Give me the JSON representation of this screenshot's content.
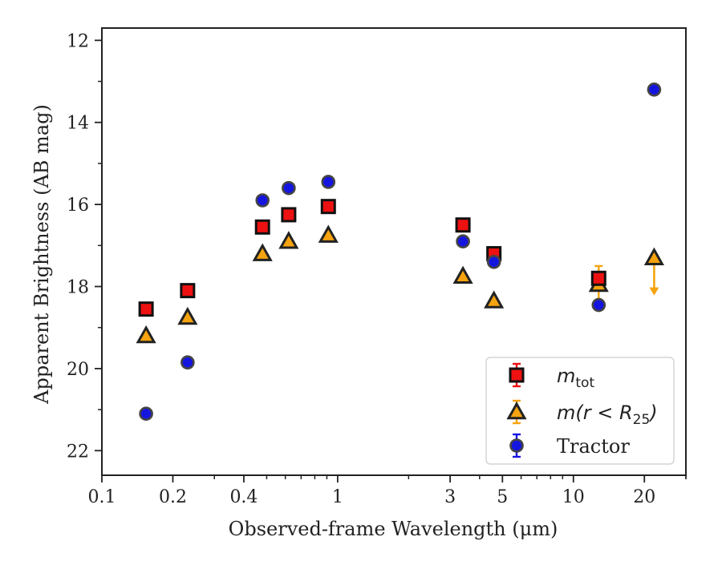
{
  "chart_data": {
    "type": "scatter",
    "xscale": "log",
    "xlim": [
      0.1,
      30
    ],
    "ylim": [
      22.6,
      11.7
    ],
    "y_inverted": true,
    "xlabel": "Observed-frame Wavelength (μm)",
    "ylabel": "Apparent Brightness (AB mag)",
    "x_ticks": [
      {
        "value": 0.1,
        "label": "0.1"
      },
      {
        "value": 0.2,
        "label": "0.2"
      },
      {
        "value": 0.4,
        "label": "0.4"
      },
      {
        "value": 1,
        "label": "1"
      },
      {
        "value": 3,
        "label": "3"
      },
      {
        "value": 5,
        "label": "5"
      },
      {
        "value": 10,
        "label": "10"
      },
      {
        "value": 20,
        "label": "20"
      }
    ],
    "y_ticks": [
      {
        "value": 12,
        "label": "12"
      },
      {
        "value": 14,
        "label": "14"
      },
      {
        "value": 16,
        "label": "16"
      },
      {
        "value": 18,
        "label": "18"
      },
      {
        "value": 20,
        "label": "20"
      },
      {
        "value": 22,
        "label": "22"
      }
    ],
    "legend_position": "lower-right",
    "series": [
      {
        "name": "m_tot",
        "marker": "square",
        "color": "#ee1111",
        "points": [
          {
            "x": 0.154,
            "y": 18.55,
            "err": 0.05
          },
          {
            "x": 0.231,
            "y": 18.1,
            "err": 0.05
          },
          {
            "x": 0.48,
            "y": 16.55,
            "err": 0.05
          },
          {
            "x": 0.62,
            "y": 16.25,
            "err": 0.05
          },
          {
            "x": 0.913,
            "y": 16.05,
            "err": 0.05
          },
          {
            "x": 3.4,
            "y": 16.5,
            "err": 0.05
          },
          {
            "x": 4.6,
            "y": 17.2,
            "err": 0.08
          },
          {
            "x": 12.8,
            "y": 17.8,
            "err": 0.08
          }
        ]
      },
      {
        "name": "m(r<R25)",
        "marker": "triangle",
        "color": "#f5a30f",
        "points": [
          {
            "x": 0.154,
            "y": 19.2,
            "err": 0.03
          },
          {
            "x": 0.231,
            "y": 18.75,
            "err": 0.03
          },
          {
            "x": 0.48,
            "y": 17.2,
            "err": 0.03
          },
          {
            "x": 0.62,
            "y": 16.9,
            "err": 0.03
          },
          {
            "x": 0.913,
            "y": 16.75,
            "err": 0.03
          },
          {
            "x": 3.4,
            "y": 17.75,
            "err": 0.03
          },
          {
            "x": 4.6,
            "y": 18.35,
            "err": 0.03
          },
          {
            "x": 12.8,
            "y": 17.95,
            "err": 0.45
          },
          {
            "x": 22.0,
            "y": 17.3,
            "err": 0,
            "upper_limit": true
          }
        ]
      },
      {
        "name": "Tractor",
        "marker": "circle",
        "color": "#1515e0",
        "points": [
          {
            "x": 0.154,
            "y": 21.1,
            "err": 0.05
          },
          {
            "x": 0.231,
            "y": 19.85,
            "err": 0.05
          },
          {
            "x": 0.48,
            "y": 15.9,
            "err": 0.03
          },
          {
            "x": 0.62,
            "y": 15.6,
            "err": 0.03
          },
          {
            "x": 0.913,
            "y": 15.45,
            "err": 0.03
          },
          {
            "x": 3.4,
            "y": 16.9,
            "err": 0.03
          },
          {
            "x": 4.6,
            "y": 17.4,
            "err": 0.03
          },
          {
            "x": 12.8,
            "y": 18.45,
            "err": 0.05
          },
          {
            "x": 22.0,
            "y": 13.2,
            "err": 0.03
          }
        ]
      }
    ],
    "legend": [
      {
        "series": "m_tot",
        "label_main": "m",
        "label_sub": "tot",
        "label_tail": ""
      },
      {
        "series": "m(r<R25)",
        "label_main": "m(r < R",
        "label_sub": "25",
        "label_tail": ")"
      },
      {
        "series": "Tractor",
        "label_main": "Tractor",
        "label_sub": "",
        "label_tail": ""
      }
    ]
  }
}
